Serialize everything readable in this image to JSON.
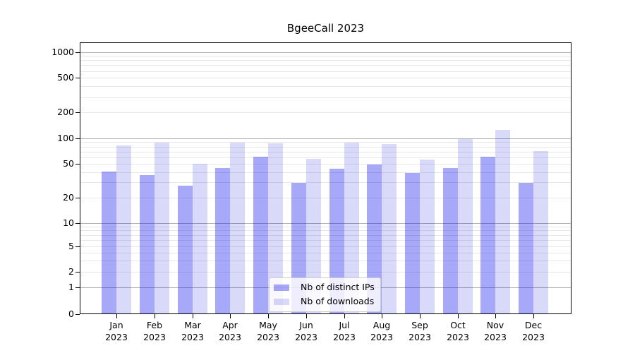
{
  "title": "BgeeCall 2023",
  "chart_data": {
    "type": "bar",
    "title": "BgeeCall 2023",
    "yscale": "symlog",
    "grid": true,
    "legend_position": "lower center inside plot",
    "categories": [
      "Jan\n2023",
      "Feb\n2023",
      "Mar\n2023",
      "Apr\n2023",
      "May\n2023",
      "Jun\n2023",
      "Jul\n2023",
      "Aug\n2023",
      "Sep\n2023",
      "Oct\n2023",
      "Nov\n2023",
      "Dec\n2023"
    ],
    "series": [
      {
        "name": "Nb of distinct IPs",
        "color": "#a9a9f7",
        "color_rgba": "rgba(0,0,235,0.34)",
        "values": [
          40,
          36,
          27,
          44,
          59,
          29,
          43,
          48,
          38,
          44,
          60,
          29
        ]
      },
      {
        "name": "Nb of downloads",
        "color": "#d9d9f8",
        "color_rgba": "rgba(0,0,215,0.15)",
        "values": [
          81,
          87,
          49,
          87,
          85,
          56,
          87,
          84,
          55,
          96,
          124,
          70
        ]
      }
    ],
    "yticks": [
      0,
      1,
      2,
      5,
      10,
      20,
      50,
      100,
      200,
      500,
      1000
    ],
    "ylim": [
      0,
      1000
    ],
    "colors": {
      "major_grid": "#b0b0b0",
      "minor_grid": "#e8e8e8",
      "axis": "#000000",
      "legend_border": "#cccccc"
    }
  }
}
